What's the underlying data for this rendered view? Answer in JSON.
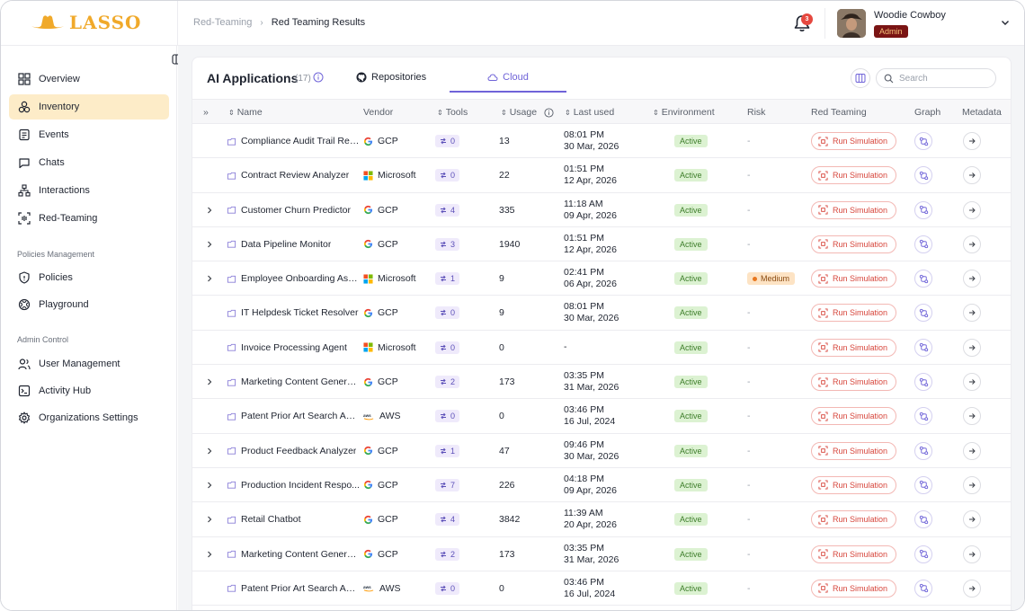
{
  "brand": {
    "name": "LASSO"
  },
  "breadcrumb": {
    "parent": "Red-Teaming",
    "current": "Red Teaming Results"
  },
  "notifications": {
    "count": "3"
  },
  "user": {
    "name": "Woodie Cowboy",
    "role": "Admin"
  },
  "sidebar": {
    "items": [
      {
        "label": "Overview",
        "icon": "overview-icon"
      },
      {
        "label": "Inventory",
        "icon": "inventory-icon",
        "active": true
      },
      {
        "label": "Events",
        "icon": "events-icon"
      },
      {
        "label": "Chats",
        "icon": "chats-icon"
      },
      {
        "label": "Interactions",
        "icon": "interactions-icon"
      },
      {
        "label": "Red-Teaming",
        "icon": "red-teaming-icon"
      }
    ],
    "policies_section": "Policies Management",
    "policies_items": [
      {
        "label": "Policies",
        "icon": "shield-icon"
      },
      {
        "label": "Playground",
        "icon": "playground-icon"
      }
    ],
    "admin_section": "Admin Control",
    "admin_items": [
      {
        "label": "User Management",
        "icon": "users-icon"
      },
      {
        "label": "Activity Hub",
        "icon": "activity-icon"
      },
      {
        "label": "Organizations Settings",
        "icon": "gear-icon"
      }
    ]
  },
  "panel": {
    "title": "AI Applications",
    "count": "(17)",
    "tabs": [
      {
        "label": "Repositories"
      },
      {
        "label": "Cloud",
        "active": true
      }
    ],
    "search_placeholder": "Search"
  },
  "table": {
    "headers": {
      "name": "Name",
      "vendor": "Vendor",
      "tools": "Tools",
      "usage": "Usage",
      "last_used": "Last used",
      "environment": "Environment",
      "risk": "Risk",
      "red_teaming": "Red Teaming",
      "graph": "Graph",
      "metadata": "Metadata"
    },
    "action_label": "Run Simulation",
    "rows": [
      {
        "expandable": false,
        "name": "Compliance Audit Trail Revi...",
        "vendor": "GCP",
        "tools": "0",
        "usage": "13",
        "time": "08:01 PM",
        "date": "30 Mar, 2026",
        "env": "Active",
        "risk": "-"
      },
      {
        "expandable": false,
        "name": "Contract Review Analyzer",
        "vendor": "Microsoft",
        "tools": "0",
        "usage": "22",
        "time": "01:51 PM",
        "date": "12 Apr, 2026",
        "env": "Active",
        "risk": "-"
      },
      {
        "expandable": true,
        "name": "Customer Churn Predictor",
        "vendor": "GCP",
        "tools": "4",
        "usage": "335",
        "time": "11:18 AM",
        "date": "09 Apr, 2026",
        "env": "Active",
        "risk": "-"
      },
      {
        "expandable": true,
        "name": "Data Pipeline Monitor",
        "vendor": "GCP",
        "tools": "3",
        "usage": "1940",
        "time": "01:51 PM",
        "date": "12 Apr, 2026",
        "env": "Active",
        "risk": "-"
      },
      {
        "expandable": true,
        "name": "Employee Onboarding Ass...",
        "vendor": "Microsoft",
        "tools": "1",
        "usage": "9",
        "time": "02:41 PM",
        "date": "06 Apr, 2026",
        "env": "Active",
        "risk": "Medium"
      },
      {
        "expandable": false,
        "name": "IT Helpdesk Ticket Resolver",
        "vendor": "GCP",
        "tools": "0",
        "usage": "9",
        "time": "08:01 PM",
        "date": "30 Mar, 2026",
        "env": "Active",
        "risk": "-"
      },
      {
        "expandable": false,
        "name": "Invoice Processing Agent",
        "vendor": "Microsoft",
        "tools": "0",
        "usage": "0",
        "time": "-",
        "date": "",
        "env": "Active",
        "risk": "-"
      },
      {
        "expandable": true,
        "name": "Marketing Content Genera...",
        "vendor": "GCP",
        "tools": "2",
        "usage": "173",
        "time": "03:35 PM",
        "date": "31 Mar, 2026",
        "env": "Active",
        "risk": "-"
      },
      {
        "expandable": false,
        "name": "Patent Prior Art Search Age...",
        "vendor": "AWS",
        "tools": "0",
        "usage": "0",
        "time": "03:46 PM",
        "date": "16 Jul, 2024",
        "env": "Active",
        "risk": "-"
      },
      {
        "expandable": true,
        "name": "Product Feedback Analyzer",
        "vendor": "GCP",
        "tools": "1",
        "usage": "47",
        "time": "09:46 PM",
        "date": "30 Mar, 2026",
        "env": "Active",
        "risk": "-"
      },
      {
        "expandable": true,
        "name": "Production Incident Respo...",
        "vendor": "GCP",
        "tools": "7",
        "usage": "226",
        "time": "04:18 PM",
        "date": "09 Apr, 2026",
        "env": "Active",
        "risk": "-"
      },
      {
        "expandable": true,
        "name": "Retail Chatbot",
        "vendor": "GCP",
        "tools": "4",
        "usage": "3842",
        "time": "11:39 AM",
        "date": "20 Apr, 2026",
        "env": "Active",
        "risk": "-"
      },
      {
        "expandable": true,
        "name": "Marketing Content Genera...",
        "vendor": "GCP",
        "tools": "2",
        "usage": "173",
        "time": "03:35 PM",
        "date": "31 Mar, 2026",
        "env": "Active",
        "risk": "-"
      },
      {
        "expandable": false,
        "name": "Patent Prior Art Search Age...",
        "vendor": "AWS",
        "tools": "0",
        "usage": "0",
        "time": "03:46 PM",
        "date": "16 Jul, 2024",
        "env": "Active",
        "risk": "-"
      }
    ]
  }
}
